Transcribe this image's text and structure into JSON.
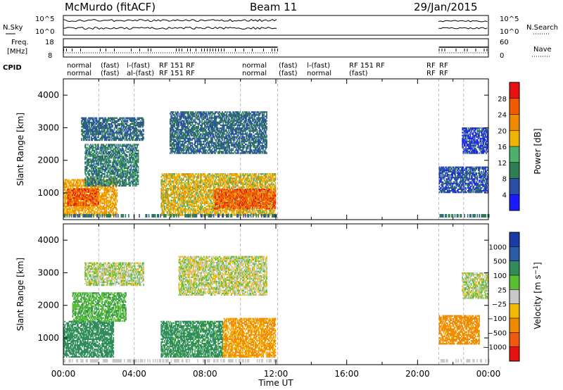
{
  "header": {
    "radar": "McMurdo (fitACF)",
    "beam": "Beam 11",
    "date": "29/Jan/2015"
  },
  "strip_labels": {
    "nsky": "N.Sky",
    "nsearch": "N.Search",
    "freq_line1": "Freq.",
    "freq_line2": "[MHz]",
    "nave": "Nave",
    "cpid": "CPID"
  },
  "strip_ticks": {
    "noise_left": [
      "10^5",
      "10^0"
    ],
    "noise_right": [
      "10^5",
      "10^0"
    ],
    "freq_left": [
      "18",
      "8"
    ],
    "nave_right": [
      "60",
      "0"
    ]
  },
  "cpid_rows": {
    "row1": [
      "normal",
      "(fast)",
      "l-(fast)",
      "RF 151 RF",
      "normal",
      "(fast)",
      "l-(fast)",
      "RF 151 RF",
      "RF",
      "RF"
    ],
    "row2": [
      "normal",
      "(fast)",
      "al-(fast)",
      "RF 151 RF",
      "normal",
      "(fast)",
      "normal",
      "(fast)",
      "RF",
      "RF"
    ]
  },
  "colors": {
    "power": [
      "#1a1aff",
      "#2a4ea8",
      "#2f7d52",
      "#4caf6a",
      "#f0b400",
      "#f08a00",
      "#f05a00",
      "#e81010"
    ],
    "velocity": [
      "#e81010",
      "#ee5a10",
      "#f08a00",
      "#f5b800",
      "#c8c8c8",
      "#58c030",
      "#2f8d5a",
      "#2a5aa8",
      "#1a3aa8"
    ]
  },
  "chart_data": [
    {
      "type": "heatmap",
      "panel": "power",
      "ylabel": "Slant Range [km]",
      "ylim": [
        180,
        4500
      ],
      "yticks": [
        1000,
        2000,
        3000,
        4000
      ],
      "xlim": [
        0,
        24
      ],
      "xticks": [
        "00:00",
        "04:00",
        "08:00",
        "12:00",
        "16:00",
        "20:00",
        "00:00"
      ],
      "colorbar": {
        "label": "Power [dB]",
        "ticks": [
          "28",
          "24",
          "20",
          "16",
          "12",
          "8",
          "4"
        ],
        "range": [
          0,
          32
        ]
      },
      "data_gaps_ut": [
        [
          12.1,
          21.2
        ]
      ],
      "echo_regions": [
        {
          "t": [
            0.0,
            3.0
          ],
          "r": [
            300,
            1400
          ],
          "power_db": 20
        },
        {
          "t": [
            0.2,
            2.0
          ],
          "r": [
            600,
            1100
          ],
          "power_db": 26
        },
        {
          "t": [
            1.2,
            4.2
          ],
          "r": [
            1200,
            2500
          ],
          "power_db": 10
        },
        {
          "t": [
            1.0,
            4.5
          ],
          "r": [
            2600,
            3300
          ],
          "power_db": 8
        },
        {
          "t": [
            5.5,
            12.0
          ],
          "r": [
            300,
            1600
          ],
          "power_db": 18
        },
        {
          "t": [
            8.5,
            12.0
          ],
          "r": [
            500,
            1100
          ],
          "power_db": 26
        },
        {
          "t": [
            6.0,
            11.5
          ],
          "r": [
            2200,
            3500
          ],
          "power_db": 8
        },
        {
          "t": [
            21.2,
            24.0
          ],
          "r": [
            1000,
            1800
          ],
          "power_db": 6
        },
        {
          "t": [
            22.5,
            24.0
          ],
          "r": [
            2200,
            3000
          ],
          "power_db": 5
        }
      ]
    },
    {
      "type": "heatmap",
      "panel": "velocity",
      "ylabel": "Slant Range [km]",
      "ylim": [
        180,
        4500
      ],
      "yticks": [
        1000,
        2000,
        3000,
        4000
      ],
      "xlim": [
        0,
        24
      ],
      "xlabel": "Time UT",
      "xticks": [
        "00:00",
        "04:00",
        "08:00",
        "12:00",
        "16:00",
        "20:00",
        "00:00"
      ],
      "colorbar": {
        "label": "Velocity [m s^-1]",
        "ticks": [
          "1000",
          "500",
          "100",
          "25",
          "−25",
          "−100",
          "−500",
          "−1000"
        ]
      },
      "data_gaps_ut": [
        [
          12.1,
          21.2
        ]
      ],
      "echo_regions": [
        {
          "t": [
            0.0,
            2.8
          ],
          "r": [
            400,
            1500
          ],
          "velocity": 200
        },
        {
          "t": [
            0.5,
            3.5
          ],
          "r": [
            1500,
            2400
          ],
          "velocity": 80
        },
        {
          "t": [
            1.2,
            4.5
          ],
          "r": [
            2600,
            3300
          ],
          "velocity": 10
        },
        {
          "t": [
            5.5,
            9.0
          ],
          "r": [
            400,
            1500
          ],
          "velocity": 150
        },
        {
          "t": [
            9.0,
            12.0
          ],
          "r": [
            400,
            1600
          ],
          "velocity": -120
        },
        {
          "t": [
            6.5,
            11.5
          ],
          "r": [
            2300,
            3500
          ],
          "velocity": 0
        },
        {
          "t": [
            21.2,
            23.5
          ],
          "r": [
            800,
            1700
          ],
          "velocity": -150
        },
        {
          "t": [
            22.5,
            24.0
          ],
          "r": [
            2200,
            3000
          ],
          "velocity": 10
        }
      ]
    }
  ]
}
